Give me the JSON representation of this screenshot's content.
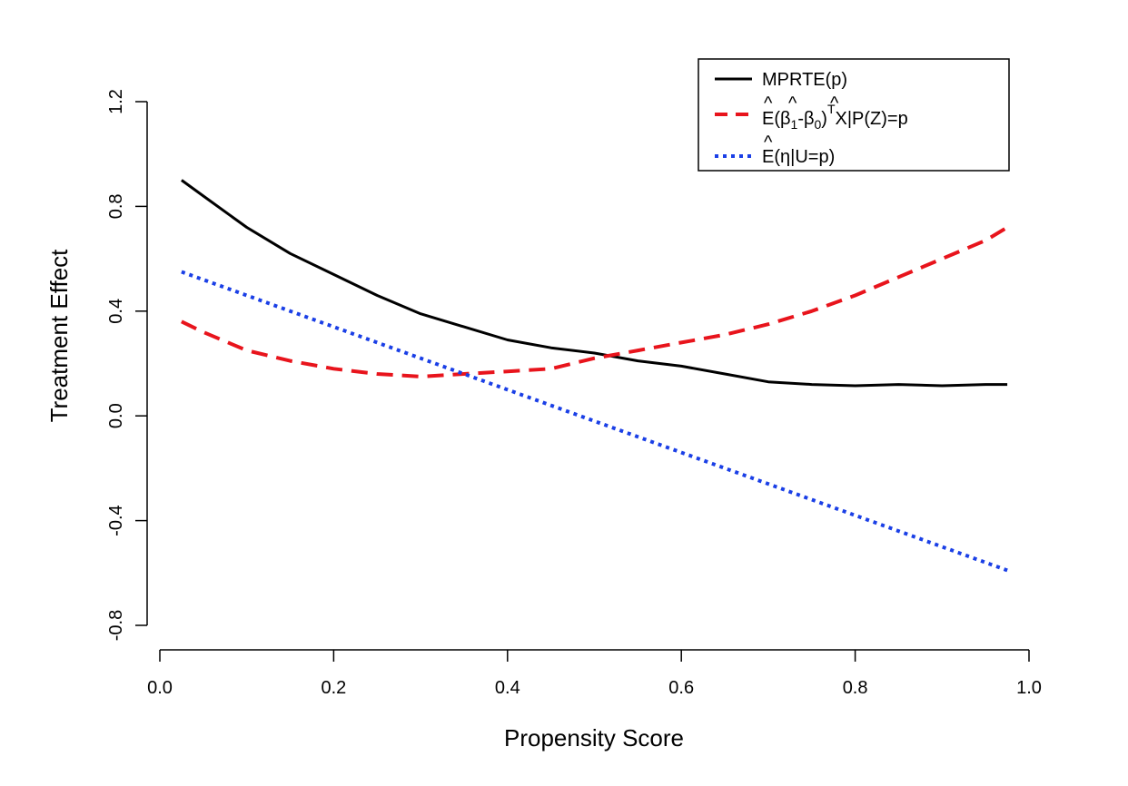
{
  "chart_data": {
    "type": "line",
    "xlabel": "Propensity Score",
    "ylabel": "Treatment Effect",
    "xlim": [
      0.0,
      1.0
    ],
    "ylim": [
      -0.8,
      1.2
    ],
    "xticks": [
      0.0,
      0.2,
      0.4,
      0.6,
      0.8,
      1.0
    ],
    "xtick_labels": [
      "0.0",
      "0.2",
      "0.4",
      "0.6",
      "0.8",
      "1.0"
    ],
    "yticks": [
      -0.8,
      -0.4,
      0.0,
      0.4,
      0.8,
      1.2
    ],
    "ytick_labels": [
      "-0.8",
      "-0.4",
      "0.0",
      "0.4",
      "0.8",
      "1.2"
    ],
    "grid": false,
    "legend_position": "top-right",
    "series": [
      {
        "name": "MPRTE(p)",
        "color": "#000000",
        "style": "solid",
        "x": [
          0.025,
          0.05,
          0.1,
          0.15,
          0.2,
          0.25,
          0.3,
          0.35,
          0.4,
          0.45,
          0.5,
          0.55,
          0.6,
          0.65,
          0.7,
          0.75,
          0.8,
          0.85,
          0.9,
          0.95,
          0.975
        ],
        "y": [
          0.9,
          0.84,
          0.72,
          0.62,
          0.54,
          0.46,
          0.39,
          0.34,
          0.29,
          0.26,
          0.24,
          0.21,
          0.19,
          0.16,
          0.13,
          0.12,
          0.115,
          0.12,
          0.115,
          0.12,
          0.12
        ]
      },
      {
        "name": "Ê(β̂1-β̂0)TX|P(Z)=p",
        "color": "#e8141c",
        "style": "dashed",
        "x": [
          0.025,
          0.05,
          0.1,
          0.15,
          0.2,
          0.25,
          0.3,
          0.35,
          0.4,
          0.45,
          0.5,
          0.55,
          0.6,
          0.65,
          0.7,
          0.75,
          0.8,
          0.85,
          0.9,
          0.95,
          0.975
        ],
        "y": [
          0.36,
          0.32,
          0.25,
          0.21,
          0.18,
          0.16,
          0.15,
          0.16,
          0.17,
          0.18,
          0.22,
          0.25,
          0.28,
          0.31,
          0.35,
          0.4,
          0.46,
          0.53,
          0.6,
          0.67,
          0.72
        ]
      },
      {
        "name": "Ê(η|U=p)",
        "color": "#1a3fe6",
        "style": "dotted",
        "x": [
          0.025,
          0.975
        ],
        "y": [
          0.55,
          -0.59
        ]
      }
    ]
  },
  "legend": {
    "line1": "MPRTE(p)",
    "line2_a": "E(β",
    "line2_sub1": "1",
    "line2_b": "-β",
    "line2_sub0": "0",
    "line2_c": ")",
    "line2_sup": "T",
    "line2_d": "X|P(Z)=p",
    "line3": "E(η|U=p)"
  }
}
